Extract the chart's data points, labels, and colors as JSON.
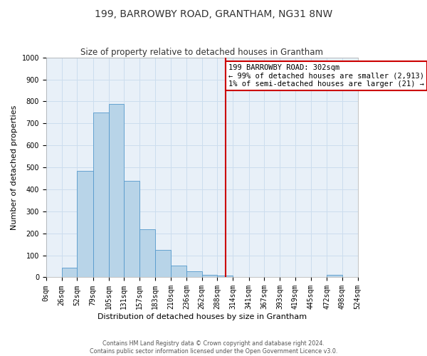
{
  "title": "199, BARROWBY ROAD, GRANTHAM, NG31 8NW",
  "subtitle": "Size of property relative to detached houses in Grantham",
  "xlabel": "Distribution of detached houses by size in Grantham",
  "ylabel": "Number of detached properties",
  "bar_left_edges": [
    0,
    26,
    52,
    79,
    105,
    131,
    157,
    183,
    210,
    236,
    262,
    288,
    314,
    341,
    367,
    393,
    419,
    445,
    472,
    498
  ],
  "bar_heights": [
    0,
    45,
    485,
    748,
    790,
    438,
    220,
    125,
    52,
    28,
    10,
    8,
    0,
    0,
    0,
    0,
    0,
    0,
    10,
    0
  ],
  "bar_color": "#b8d4e8",
  "bar_edge_color": "#5599cc",
  "xlim_min": 0,
  "xlim_max": 524,
  "ylim_min": 0,
  "ylim_max": 1000,
  "yticks": [
    0,
    100,
    200,
    300,
    400,
    500,
    600,
    700,
    800,
    900,
    1000
  ],
  "xtick_labels": [
    "0sqm",
    "26sqm",
    "52sqm",
    "79sqm",
    "105sqm",
    "131sqm",
    "157sqm",
    "183sqm",
    "210sqm",
    "236sqm",
    "262sqm",
    "288sqm",
    "314sqm",
    "341sqm",
    "367sqm",
    "393sqm",
    "419sqm",
    "445sqm",
    "472sqm",
    "498sqm",
    "524sqm"
  ],
  "xtick_positions": [
    0,
    26,
    52,
    79,
    105,
    131,
    157,
    183,
    210,
    236,
    262,
    288,
    314,
    341,
    367,
    393,
    419,
    445,
    472,
    498,
    524
  ],
  "property_line_x": 302,
  "property_line_color": "#cc0000",
  "annotation_text": "199 BARROWBY ROAD: 302sqm\n← 99% of detached houses are smaller (2,913)\n1% of semi-detached houses are larger (21) →",
  "annotation_box_color": "#cc0000",
  "footer_text": "Contains HM Land Registry data © Crown copyright and database right 2024.\nContains public sector information licensed under the Open Government Licence v3.0.",
  "background_color": "#ffffff",
  "ax_background_color": "#e8f0f8",
  "grid_color": "#ccddee",
  "title_fontsize": 10,
  "subtitle_fontsize": 8.5,
  "axis_label_fontsize": 8,
  "tick_fontsize": 7,
  "annotation_fontsize": 7.5,
  "footer_fontsize": 5.8
}
